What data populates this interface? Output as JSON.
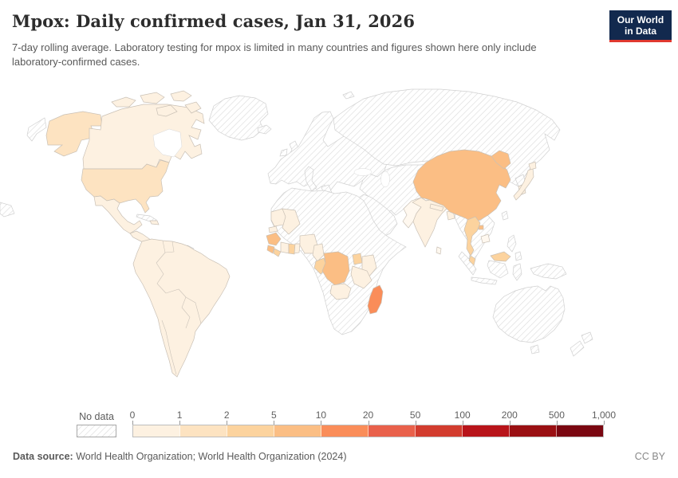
{
  "header": {
    "title": "Mpox: Daily confirmed cases, Jan 31, 2026",
    "subtitle": "7-day rolling average. Laboratory testing for mpox is limited in many countries and figures shown here only include laboratory-confirmed cases.",
    "logo": {
      "line1": "Our World",
      "line2": "in Data",
      "bg_color": "#12294e",
      "accent_color": "#e0392f"
    }
  },
  "legend": {
    "no_data_label": "No data",
    "ticks": [
      "0",
      "1",
      "2",
      "5",
      "10",
      "20",
      "50",
      "100",
      "200",
      "500",
      "1,000"
    ],
    "bins": [
      {
        "range": "0-1",
        "color": "#fdf1e1"
      },
      {
        "range": "1-2",
        "color": "#fde3c1"
      },
      {
        "range": "2-5",
        "color": "#fcd39e"
      },
      {
        "range": "5-10",
        "color": "#fbbe84"
      },
      {
        "range": "10-20",
        "color": "#fa8d59"
      },
      {
        "range": "20-50",
        "color": "#e9614b"
      },
      {
        "range": "50-100",
        "color": "#d23c2e"
      },
      {
        "range": "100-200",
        "color": "#b8141a"
      },
      {
        "range": "200-500",
        "color": "#9a1013"
      },
      {
        "range": "500-1000",
        "color": "#7a0711"
      }
    ]
  },
  "map": {
    "zero_fill": "#fff8ef",
    "hatch_line_color": "#dadada",
    "border_color": "#c9c0b5",
    "regions": [
      {
        "id": "canada",
        "label": "Canada",
        "bin": 0
      },
      {
        "id": "usa",
        "label": "United States",
        "bin": 1
      },
      {
        "id": "mexico",
        "label": "Mexico",
        "bin": 0
      },
      {
        "id": "central-america",
        "label": "Central America",
        "bin": 0
      },
      {
        "id": "hispaniola",
        "label": "Dominican Republic",
        "bin": 0
      },
      {
        "id": "south-america",
        "label": "South America",
        "bin": 0
      },
      {
        "id": "mauritania",
        "label": "Mauritania",
        "bin": 0
      },
      {
        "id": "senegal",
        "label": "Senegal",
        "bin": 0
      },
      {
        "id": "mali",
        "label": "Mali",
        "bin": 0
      },
      {
        "id": "guinea",
        "label": "Guinea",
        "bin": 3
      },
      {
        "id": "sierra-leone",
        "label": "Sierra Leone",
        "bin": 3
      },
      {
        "id": "liberia",
        "label": "Liberia",
        "bin": 2
      },
      {
        "id": "ivory-coast",
        "label": "Cote d'Ivoire",
        "bin": 0
      },
      {
        "id": "ghana",
        "label": "Ghana",
        "bin": 2
      },
      {
        "id": "togo-benin",
        "label": "Togo/Benin",
        "bin": 0
      },
      {
        "id": "nigeria",
        "label": "Nigeria",
        "bin": 0
      },
      {
        "id": "cameroon",
        "label": "Cameroon",
        "bin": 0
      },
      {
        "id": "congo",
        "label": "Congo",
        "bin": 2
      },
      {
        "id": "drc",
        "label": "Democratic Republic of Congo",
        "bin": 3
      },
      {
        "id": "uganda",
        "label": "Uganda",
        "bin": 2
      },
      {
        "id": "kenya",
        "label": "Kenya",
        "bin": 0
      },
      {
        "id": "tanzania",
        "label": "Tanzania",
        "bin": 0
      },
      {
        "id": "zambia",
        "label": "Zambia",
        "bin": 0
      },
      {
        "id": "madagascar",
        "label": "Madagascar",
        "bin": 4
      },
      {
        "id": "india",
        "label": "India",
        "bin": 0
      },
      {
        "id": "nepal",
        "label": "Nepal",
        "bin": 0
      },
      {
        "id": "bangladesh",
        "label": "Bangladesh",
        "bin": 0
      },
      {
        "id": "pakistan",
        "label": "Pakistan",
        "bin": -1
      },
      {
        "id": "sri-lanka",
        "label": "Sri Lanka",
        "bin": -1
      },
      {
        "id": "china",
        "label": "China",
        "bin": 3
      },
      {
        "id": "south-korea",
        "label": "South Korea",
        "bin": 0
      },
      {
        "id": "japan",
        "label": "Japan",
        "bin": 0
      },
      {
        "id": "thailand",
        "label": "Thailand",
        "bin": 2
      },
      {
        "id": "cambodia",
        "label": "Cambodia",
        "bin": -1
      },
      {
        "id": "malaysia",
        "label": "Malaysia",
        "bin": 2
      }
    ],
    "no_data_regions": [
      "Greenland",
      "Iceland",
      "Europe",
      "Russia",
      "Central Asia",
      "Middle East",
      "North Africa",
      "Horn of Africa",
      "Southern Africa",
      "Myanmar",
      "Vietnam",
      "Laos",
      "North Korea",
      "Taiwan",
      "Philippines",
      "Indonesia",
      "Papua New Guinea",
      "Australia",
      "New Zealand",
      "Cuba",
      "French Guiana"
    ]
  },
  "footer": {
    "source_label": "Data source:",
    "source_text": " World Health Organization; World Health Organization (2024)",
    "license": "CC BY"
  },
  "chart_data": {
    "type": "heatmap",
    "title": "Mpox: Daily confirmed cases, Jan 31, 2026",
    "unit": "daily confirmed cases, 7-day rolling average",
    "legend_bins": [
      "0-1",
      "1-2",
      "2-5",
      "5-10",
      "10-20",
      "20-50",
      "50-100",
      "100-200",
      "200-500",
      "500-1000"
    ],
    "regions": [
      {
        "name": "Canada",
        "value_range": "0-1"
      },
      {
        "name": "United States",
        "value_range": "1-2"
      },
      {
        "name": "Mexico",
        "value_range": "0-1"
      },
      {
        "name": "South America",
        "value_range": "0-1"
      },
      {
        "name": "Guinea",
        "value_range": "5-10"
      },
      {
        "name": "Sierra Leone",
        "value_range": "5-10"
      },
      {
        "name": "Liberia",
        "value_range": "2-5"
      },
      {
        "name": "Ghana",
        "value_range": "2-5"
      },
      {
        "name": "Nigeria",
        "value_range": "0-1"
      },
      {
        "name": "Congo",
        "value_range": "2-5"
      },
      {
        "name": "Democratic Republic of Congo",
        "value_range": "5-10"
      },
      {
        "name": "Uganda",
        "value_range": "2-5"
      },
      {
        "name": "Kenya",
        "value_range": "0-1"
      },
      {
        "name": "Tanzania",
        "value_range": "0-1"
      },
      {
        "name": "Zambia",
        "value_range": "0-1"
      },
      {
        "name": "Madagascar",
        "value_range": "10-20"
      },
      {
        "name": "India",
        "value_range": "0-1"
      },
      {
        "name": "China",
        "value_range": "5-10"
      },
      {
        "name": "Japan",
        "value_range": "0-1"
      },
      {
        "name": "South Korea",
        "value_range": "0-1"
      },
      {
        "name": "Thailand",
        "value_range": "2-5"
      },
      {
        "name": "Malaysia",
        "value_range": "2-5"
      }
    ]
  }
}
